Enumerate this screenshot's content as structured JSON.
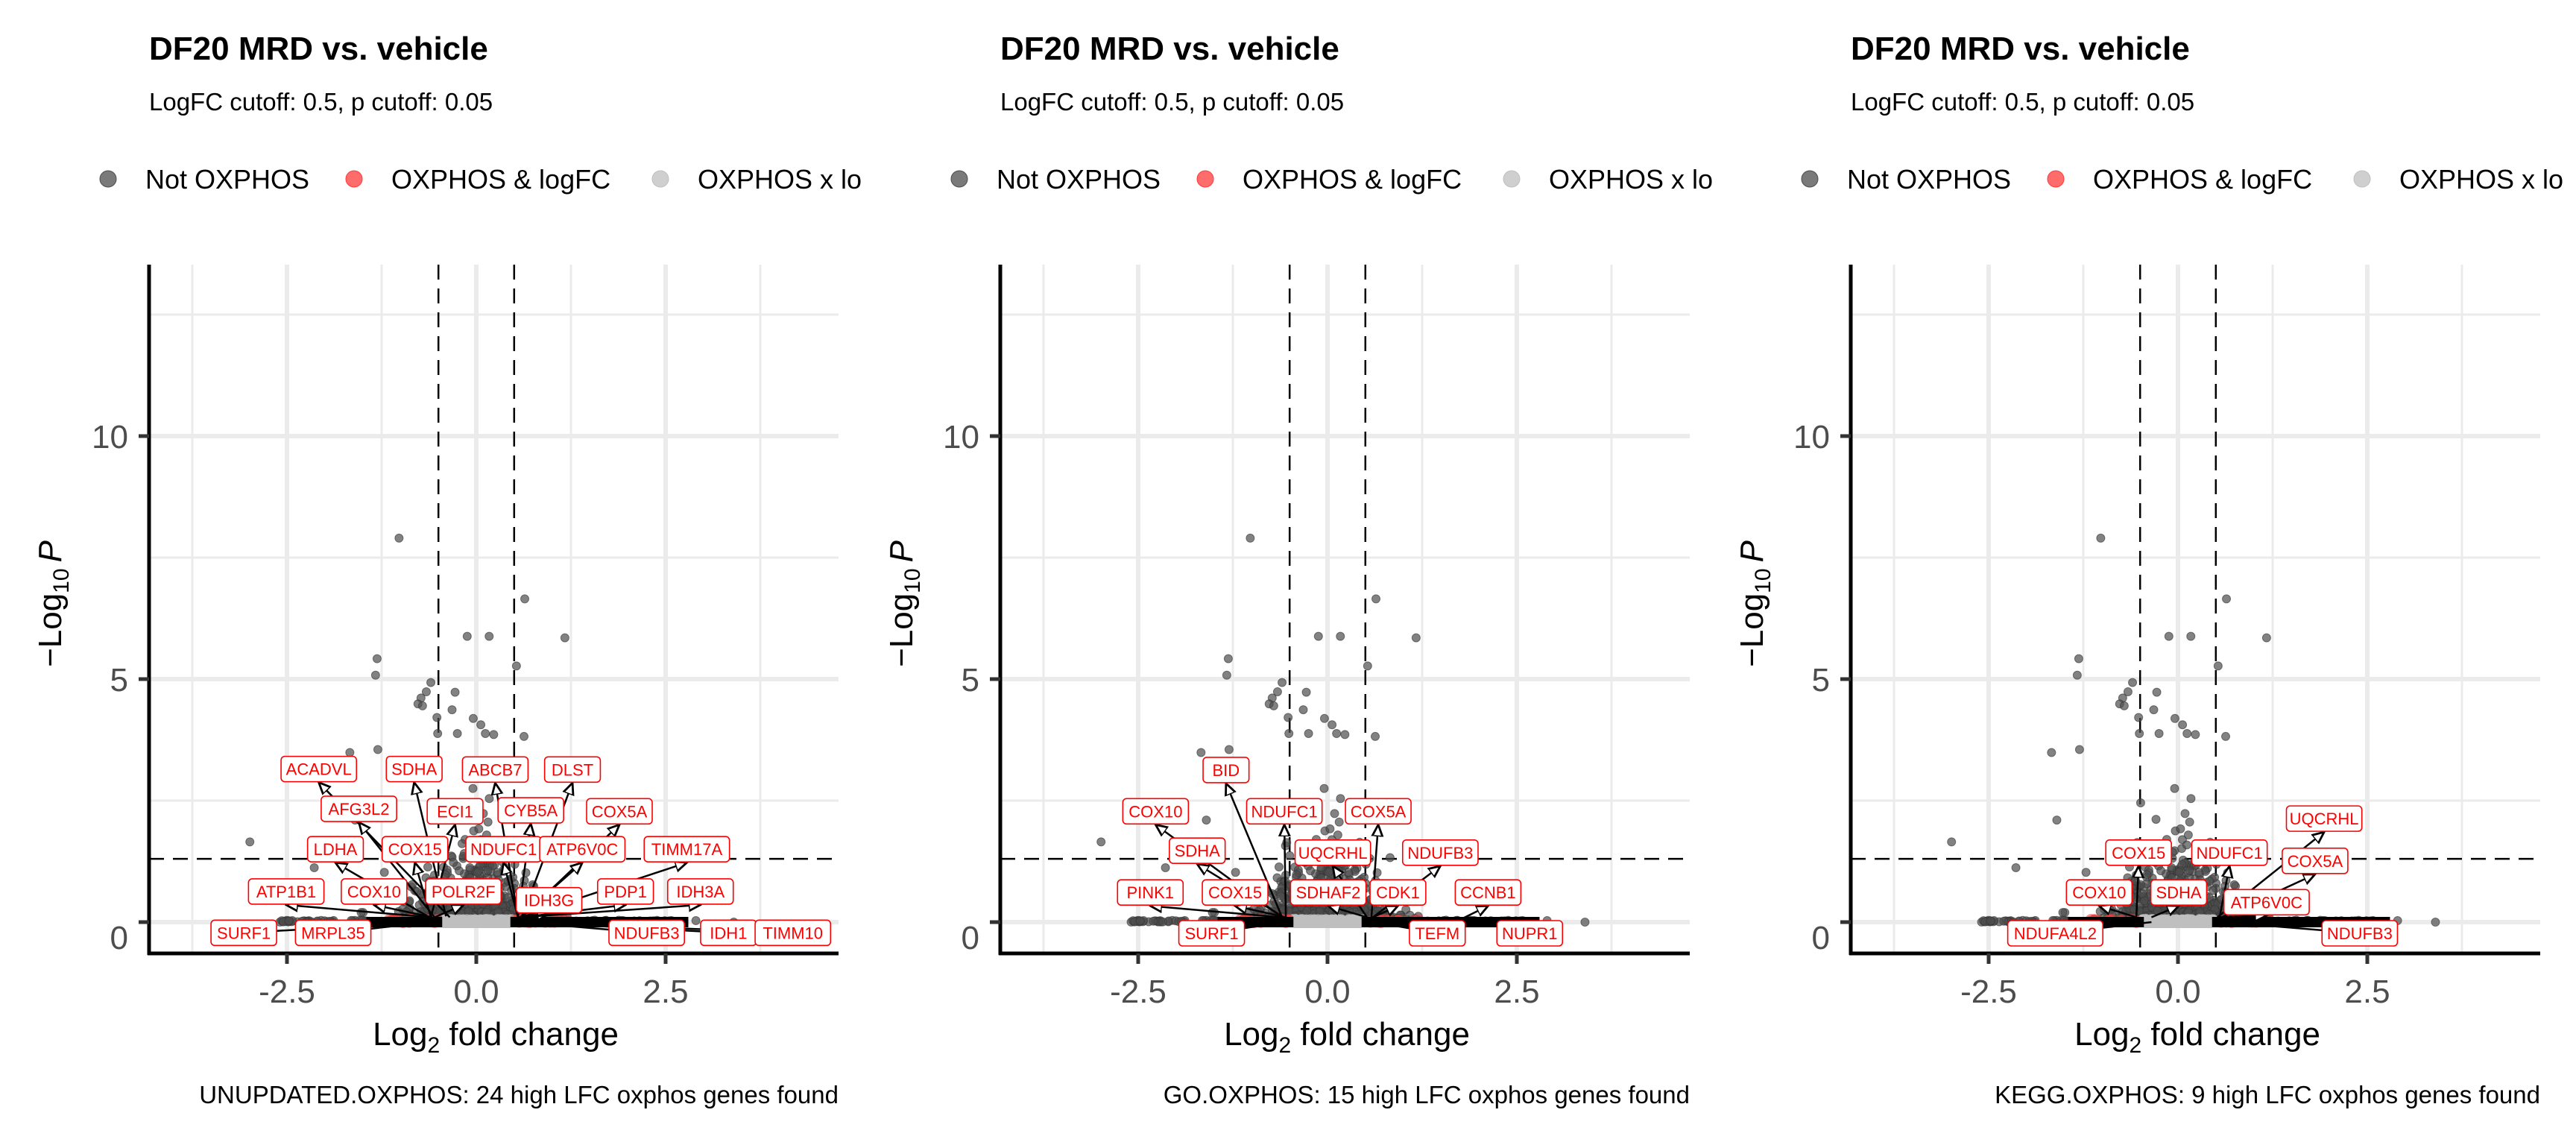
{
  "colors": {
    "not_oxphos": "#4d4d4d",
    "oxphos_logfc": "#ff3b3b",
    "oxphos_x_logfc": "#bfbfbf",
    "label_text": "#ff0000",
    "label_border": "#ff0000",
    "grid": "#ebebeb",
    "tick_text": "#4d4d4d"
  },
  "legend": {
    "items": [
      {
        "label": "Not OXPHOS",
        "key": "not_oxphos"
      },
      {
        "label": "OXPHOS & logFC",
        "key": "oxphos_logfc"
      },
      {
        "label": "OXPHOS x lo",
        "key": "oxphos_x_logfc"
      }
    ]
  },
  "chart_data": [
    {
      "type": "scatter",
      "title": "DF20 MRD vs. vehicle",
      "subtitle": "LogFC cutoff: 0.5, p cutoff: 0.05",
      "caption": "UNUPDATED.OXPHOS: 24 high LFC oxphos genes found",
      "xlabel_main": "Log",
      "xlabel_sub": "2",
      "xlabel_rest": " fold change",
      "ylabel_prefix": "−Log",
      "ylabel_sub": "10",
      "ylabel_suffix": "P",
      "xlim": [
        -4.32,
        4.79
      ],
      "ylim": [
        -0.65,
        13.5
      ],
      "x_ticks": [
        -2.5,
        0.0,
        2.5
      ],
      "x_tick_labels": [
        "-2.5",
        "0.0",
        "2.5"
      ],
      "y_ticks": [
        0,
        5,
        10
      ],
      "y_tick_labels": [
        "0",
        "5",
        "10"
      ],
      "grid": true,
      "logfc_cutoff": 0.5,
      "p_cutoff": 0.05,
      "neglog10_p_cutoff": 1.301,
      "legend_position": "top-left",
      "gene_count": 24,
      "labels": [
        {
          "gene": "ACADVL",
          "x": -2.08,
          "y": 3.15,
          "px": -0.35,
          "py": 0.1
        },
        {
          "gene": "SDHA",
          "x": -0.82,
          "y": 3.15,
          "px": -0.4,
          "py": 0.12
        },
        {
          "gene": "ABCB7",
          "x": 0.25,
          "y": 3.14,
          "px": 0.55,
          "py": 0.1
        },
        {
          "gene": "DLST",
          "x": 1.27,
          "y": 3.14,
          "px": 0.6,
          "py": 0.1
        },
        {
          "gene": "AFG3L2",
          "x": -1.55,
          "y": 2.33,
          "px": -0.55,
          "py": 0.1
        },
        {
          "gene": "ECI1",
          "x": -0.28,
          "y": 2.28,
          "px": -0.6,
          "py": 0.1
        },
        {
          "gene": "CYB5A",
          "x": 0.72,
          "y": 2.3,
          "px": 0.55,
          "py": 0.1
        },
        {
          "gene": "COX5A",
          "x": 1.89,
          "y": 2.28,
          "px": 0.6,
          "py": 0.1
        },
        {
          "gene": "LDHA",
          "x": -1.86,
          "y": 1.5,
          "px": -0.62,
          "py": 0.1
        },
        {
          "gene": "COX15",
          "x": -0.81,
          "y": 1.5,
          "px": -0.6,
          "py": 0.1
        },
        {
          "gene": "NDUFC1",
          "x": 0.36,
          "y": 1.5,
          "px": 0.55,
          "py": 0.1
        },
        {
          "gene": "ATP6V0C",
          "x": 1.4,
          "y": 1.5,
          "px": 0.58,
          "py": 0.1
        },
        {
          "gene": "TIMM17A",
          "x": 2.78,
          "y": 1.5,
          "px": 0.6,
          "py": 0.1
        },
        {
          "gene": "ATP1B1",
          "x": -2.51,
          "y": 0.63,
          "px": -0.6,
          "py": 0.1
        },
        {
          "gene": "COX10",
          "x": -1.35,
          "y": 0.63,
          "px": -0.58,
          "py": 0.1
        },
        {
          "gene": "POLR2F",
          "x": -0.17,
          "y": 0.63,
          "px": -0.55,
          "py": 0.1
        },
        {
          "gene": "IDH3G",
          "x": 0.96,
          "y": 0.45,
          "px": 0.55,
          "py": 0.1
        },
        {
          "gene": "PDP1",
          "x": 1.97,
          "y": 0.63,
          "px": 0.6,
          "py": 0.1
        },
        {
          "gene": "IDH3A",
          "x": 2.96,
          "y": 0.63,
          "px": 0.58,
          "py": 0.1
        },
        {
          "gene": "SURF1",
          "x": -3.07,
          "y": -0.22,
          "px": -0.62,
          "py": 0.0
        },
        {
          "gene": "MRPL35",
          "x": -1.89,
          "y": -0.22,
          "px": -0.6,
          "py": 0.0
        },
        {
          "gene": "NDUFB3",
          "x": 2.25,
          "y": -0.22,
          "px": 0.58,
          "py": 0.0
        },
        {
          "gene": "IDH1",
          "x": 3.33,
          "y": -0.22,
          "px": 0.6,
          "py": 0.0
        },
        {
          "gene": "TIMM10",
          "x": 4.18,
          "y": -0.22,
          "px": 0.6,
          "py": 0.0
        }
      ]
    },
    {
      "type": "scatter",
      "title": "DF20 MRD vs. vehicle",
      "subtitle": "LogFC cutoff: 0.5, p cutoff: 0.05",
      "caption": "GO.OXPHOS: 15 high LFC oxphos genes found",
      "xlabel_main": "Log",
      "xlabel_sub": "2",
      "xlabel_rest": " fold change",
      "ylabel_prefix": "−Log",
      "ylabel_sub": "10",
      "ylabel_suffix": "P",
      "xlim": [
        -4.32,
        4.79
      ],
      "ylim": [
        -0.65,
        13.5
      ],
      "x_ticks": [
        -2.5,
        0.0,
        2.5
      ],
      "x_tick_labels": [
        "-2.5",
        "0.0",
        "2.5"
      ],
      "y_ticks": [
        0,
        5,
        10
      ],
      "y_tick_labels": [
        "0",
        "5",
        "10"
      ],
      "grid": true,
      "logfc_cutoff": 0.5,
      "p_cutoff": 0.05,
      "neglog10_p_cutoff": 1.301,
      "legend_position": "top-left",
      "gene_count": 15,
      "labels": [
        {
          "gene": "BID",
          "x": -1.34,
          "y": 3.13,
          "px": -0.6,
          "py": 0.1
        },
        {
          "gene": "COX10",
          "x": -2.27,
          "y": 2.28,
          "px": -0.6,
          "py": 0.1
        },
        {
          "gene": "NDUFC1",
          "x": -0.57,
          "y": 2.28,
          "px": -0.55,
          "py": 0.1
        },
        {
          "gene": "COX5A",
          "x": 0.67,
          "y": 2.28,
          "px": 0.58,
          "py": 0.1
        },
        {
          "gene": "SDHA",
          "x": -1.72,
          "y": 1.47,
          "px": -0.58,
          "py": 0.1
        },
        {
          "gene": "UQCRHL",
          "x": 0.07,
          "y": 1.43,
          "px": 0.52,
          "py": 0.1
        },
        {
          "gene": "NDUFB3",
          "x": 1.49,
          "y": 1.43,
          "px": 0.6,
          "py": 0.1
        },
        {
          "gene": "PINK1",
          "x": -2.34,
          "y": 0.61,
          "px": -0.62,
          "py": 0.1
        },
        {
          "gene": "COX15",
          "x": -1.22,
          "y": 0.61,
          "px": -0.55,
          "py": 0.1
        },
        {
          "gene": "SDHAF2",
          "x": 0.01,
          "y": 0.61,
          "px": 0.52,
          "py": 0.1
        },
        {
          "gene": "CDK1",
          "x": 0.93,
          "y": 0.61,
          "px": 0.6,
          "py": 0.1
        },
        {
          "gene": "CCNB1",
          "x": 2.12,
          "y": 0.61,
          "px": 1.75,
          "py": 0.05
        },
        {
          "gene": "SURF1",
          "x": -1.53,
          "y": -0.23,
          "px": -0.58,
          "py": 0.0
        },
        {
          "gene": "TEFM",
          "x": 1.45,
          "y": -0.23,
          "px": 0.62,
          "py": 0.0
        },
        {
          "gene": "NUPR1",
          "x": 2.67,
          "y": -0.23,
          "px": 2.05,
          "py": 0.0
        }
      ]
    },
    {
      "type": "scatter",
      "title": "DF20 MRD vs. vehicle",
      "subtitle": "LogFC cutoff: 0.5, p cutoff: 0.05",
      "caption": "KEGG.OXPHOS: 9 high LFC oxphos genes found",
      "xlabel_main": "Log",
      "xlabel_sub": "2",
      "xlabel_rest": " fold change",
      "ylabel_prefix": "−Log",
      "ylabel_sub": "10",
      "ylabel_suffix": "P",
      "xlim": [
        -4.32,
        4.79
      ],
      "ylim": [
        -0.65,
        13.5
      ],
      "x_ticks": [
        -2.5,
        0.0,
        2.5
      ],
      "x_tick_labels": [
        "-2.5",
        "0.0",
        "2.5"
      ],
      "y_ticks": [
        0,
        5,
        10
      ],
      "y_tick_labels": [
        "0",
        "5",
        "10"
      ],
      "grid": true,
      "logfc_cutoff": 0.5,
      "p_cutoff": 0.05,
      "neglog10_p_cutoff": 1.301,
      "legend_position": "top-left",
      "gene_count": 9,
      "labels": [
        {
          "gene": "UQCRHL",
          "x": 1.93,
          "y": 2.13,
          "px": 0.52,
          "py": 0.1
        },
        {
          "gene": "COX15",
          "x": -0.52,
          "y": 1.43,
          "px": -0.55,
          "py": 0.1
        },
        {
          "gene": "NDUFC1",
          "x": 0.68,
          "y": 1.43,
          "px": 0.55,
          "py": 0.1
        },
        {
          "gene": "COX5A",
          "x": 1.81,
          "y": 1.26,
          "px": 0.58,
          "py": 0.1
        },
        {
          "gene": "COX10",
          "x": -1.04,
          "y": 0.61,
          "px": -0.55,
          "py": 0.1
        },
        {
          "gene": "SDHA",
          "x": 0.01,
          "y": 0.61,
          "px": -0.35,
          "py": 0.1
        },
        {
          "gene": "ATP6V0C",
          "x": 1.17,
          "y": 0.41,
          "px": 0.55,
          "py": 0.1
        },
        {
          "gene": "NDUFA4L2",
          "x": -1.62,
          "y": -0.23,
          "px": -0.35,
          "py": 0.0
        },
        {
          "gene": "NDUFB3",
          "x": 2.4,
          "y": -0.23,
          "px": 0.6,
          "py": 0.0
        }
      ]
    }
  ],
  "shared_points": {
    "high_significance": [
      [
        -1.02,
        7.9
      ],
      [
        0.64,
        6.65
      ],
      [
        -0.12,
        5.88
      ],
      [
        0.17,
        5.88
      ],
      [
        1.17,
        5.85
      ],
      [
        -1.31,
        5.42
      ],
      [
        -1.33,
        5.08
      ],
      [
        0.53,
        5.27
      ],
      [
        -0.6,
        4.93
      ],
      [
        -0.66,
        4.74
      ],
      [
        -0.28,
        4.73
      ],
      [
        -0.73,
        4.61
      ],
      [
        -0.77,
        4.49
      ],
      [
        -0.71,
        4.45
      ],
      [
        -0.32,
        4.37
      ],
      [
        -0.52,
        4.21
      ],
      [
        -0.04,
        4.19
      ],
      [
        0.06,
        4.06
      ],
      [
        -0.51,
        3.88
      ],
      [
        -0.25,
        3.88
      ],
      [
        0.12,
        3.88
      ],
      [
        0.23,
        3.86
      ],
      [
        0.63,
        3.82
      ],
      [
        -1.67,
        3.49
      ],
      [
        -1.3,
        3.55
      ],
      [
        -2.99,
        1.65
      ],
      [
        -2.14,
        1.12
      ],
      [
        -1.6,
        2.1
      ],
      [
        -2.3,
        0.02
      ],
      [
        3.4,
        0.0
      ],
      [
        2.9,
        0.03
      ]
    ],
    "n_background": 900,
    "n_oxphos_logfc": 60,
    "n_oxphos_x_logfc": 140
  }
}
